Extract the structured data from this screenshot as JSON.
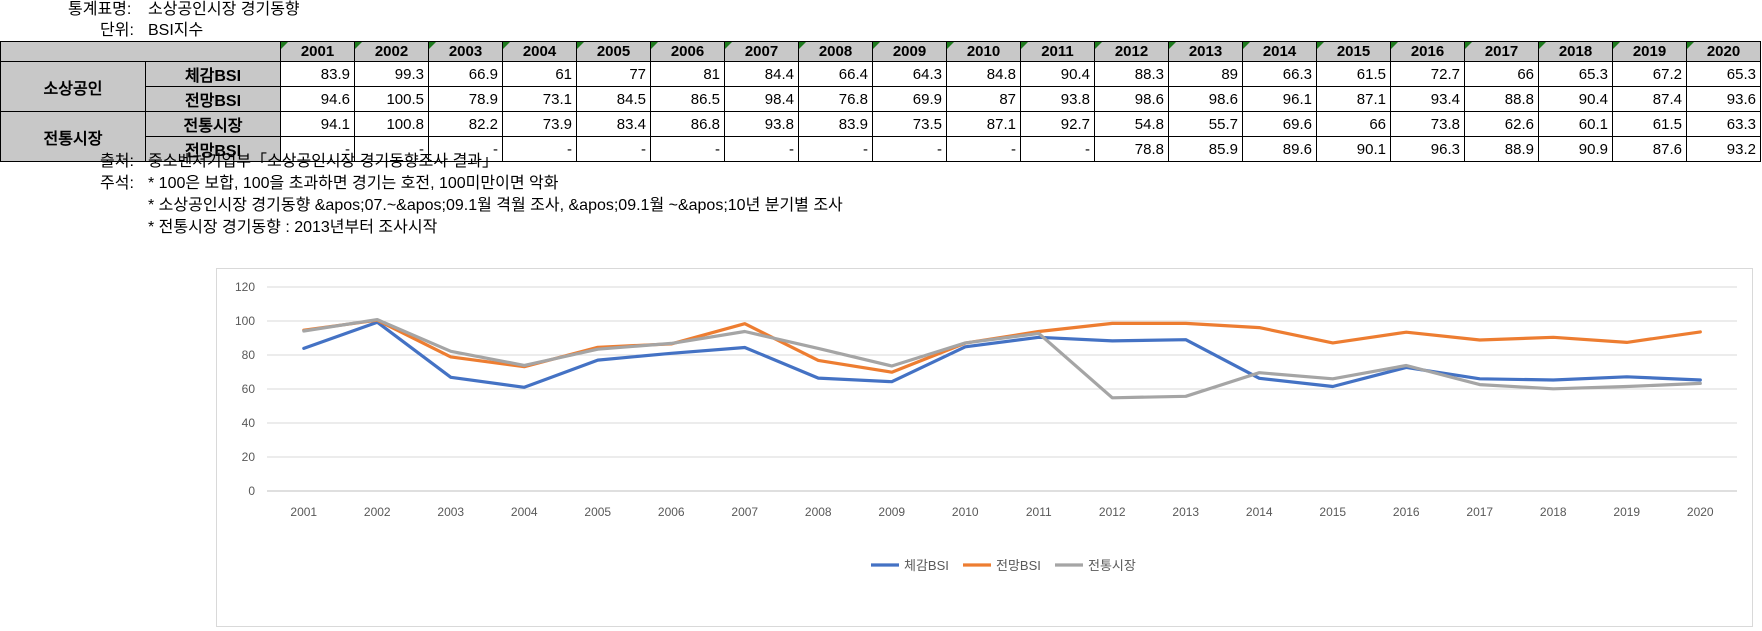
{
  "meta": {
    "title_key": "통계표명:",
    "title_value": "소상공인시장 경기동향",
    "unit_key": "단위:",
    "unit_value": "BSI지수"
  },
  "table": {
    "years": [
      "2001",
      "2002",
      "2003",
      "2004",
      "2005",
      "2006",
      "2007",
      "2008",
      "2009",
      "2010",
      "2011",
      "2012",
      "2013",
      "2014",
      "2015",
      "2016",
      "2017",
      "2018",
      "2019",
      "2020"
    ],
    "groups": [
      {
        "name": "소상공인",
        "rows": [
          {
            "label": "체감BSI",
            "values": [
              "83.9",
              "99.3",
              "66.9",
              "61",
              "77",
              "81",
              "84.4",
              "66.4",
              "64.3",
              "84.8",
              "90.4",
              "88.3",
              "89",
              "66.3",
              "61.5",
              "72.7",
              "66",
              "65.3",
              "67.2",
              "65.3"
            ]
          },
          {
            "label": "전망BSI",
            "values": [
              "94.6",
              "100.5",
              "78.9",
              "73.1",
              "84.5",
              "86.5",
              "98.4",
              "76.8",
              "69.9",
              "87",
              "93.8",
              "98.6",
              "98.6",
              "96.1",
              "87.1",
              "93.4",
              "88.8",
              "90.4",
              "87.4",
              "93.6"
            ]
          }
        ]
      },
      {
        "name": "전통시장",
        "rows": [
          {
            "label": "전통시장",
            "values": [
              "94.1",
              "100.8",
              "82.2",
              "73.9",
              "83.4",
              "86.8",
              "93.8",
              "83.9",
              "73.5",
              "87.1",
              "92.7",
              "54.8",
              "55.7",
              "69.6",
              "66",
              "73.8",
              "62.6",
              "60.1",
              "61.5",
              "63.3"
            ]
          },
          {
            "label": "전망BSI",
            "values": [
              "-",
              "-",
              "-",
              "-",
              "-",
              "-",
              "-",
              "-",
              "-",
              "-",
              "-",
              "78.8",
              "85.9",
              "89.6",
              "90.1",
              "96.3",
              "88.9",
              "90.9",
              "87.6",
              "93.2"
            ]
          }
        ]
      }
    ]
  },
  "notes": {
    "source_key": "출처:",
    "source_value": "중소벤처기업부「소상공인시장 경기동향조사 결과」",
    "remark_key": "주석:",
    "remark_1": "* 100은 보합, 100을 초과하면 경기는 호전, 100미만이면 악화",
    "remark_2": "* 소상공인시장 경기동향 &apos;07.~&apos;09.1월 격월 조사, &apos;09.1월 ~&apos;10년 분기별 조사",
    "remark_3": "* 전통시장 경기동향 : 2013년부터 조사시작"
  },
  "chart_data": {
    "type": "line",
    "x": [
      "2001",
      "2002",
      "2003",
      "2004",
      "2005",
      "2006",
      "2007",
      "2008",
      "2009",
      "2010",
      "2011",
      "2012",
      "2013",
      "2014",
      "2015",
      "2016",
      "2017",
      "2018",
      "2019",
      "2020"
    ],
    "series": [
      {
        "name": "체감BSI",
        "color": "#4472c4",
        "values": [
          83.9,
          99.3,
          66.9,
          61,
          77,
          81,
          84.4,
          66.4,
          64.3,
          84.8,
          90.4,
          88.3,
          89,
          66.3,
          61.5,
          72.7,
          66,
          65.3,
          67.2,
          65.3
        ]
      },
      {
        "name": "전망BSI",
        "color": "#ed7d31",
        "values": [
          94.6,
          100.5,
          78.9,
          73.1,
          84.5,
          86.5,
          98.4,
          76.8,
          69.9,
          87,
          93.8,
          98.6,
          98.6,
          96.1,
          87.1,
          93.4,
          88.8,
          90.4,
          87.4,
          93.6
        ]
      },
      {
        "name": "전통시장",
        "color": "#a5a5a5",
        "values": [
          94.1,
          100.8,
          82.2,
          73.9,
          83.4,
          86.8,
          93.8,
          83.9,
          73.5,
          87.1,
          92.7,
          54.8,
          55.7,
          69.6,
          66,
          73.8,
          62.6,
          60.1,
          61.5,
          63.3
        ]
      }
    ],
    "y_ticks": [
      "0",
      "20",
      "40",
      "60",
      "80",
      "100",
      "120"
    ],
    "ylim": [
      0,
      120
    ],
    "grid": true,
    "legend": "bottom"
  }
}
